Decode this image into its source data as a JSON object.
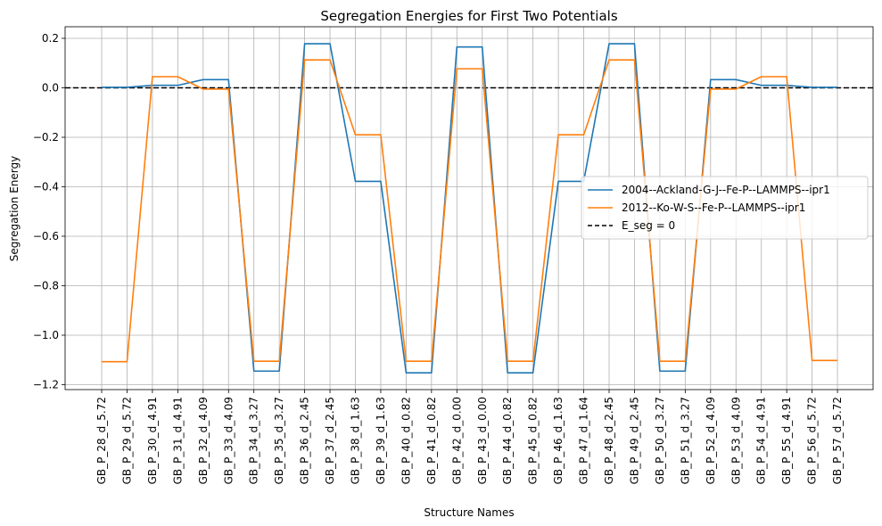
{
  "chart_data": {
    "type": "line",
    "title": "Segregation Energies for First Two Potentials",
    "xlabel": "Structure Names",
    "ylabel": "Segregation Energy",
    "ylim": [
      -1.22,
      0.23
    ],
    "yticks": [
      0.2,
      0.0,
      -0.2,
      -0.4,
      -0.6,
      -0.8,
      -1.0,
      -1.2
    ],
    "ytick_labels": [
      "0.2",
      "0.0",
      "−0.2",
      "−0.4",
      "−0.6",
      "−0.8",
      "−1.0",
      "−1.2"
    ],
    "grid": true,
    "legend_position": "center-right",
    "categories": [
      "GB_P_28_d_5.72",
      "GB_P_29_d_5.72",
      "GB_P_30_d_4.91",
      "GB_P_31_d_4.91",
      "GB_P_32_d_4.09",
      "GB_P_33_d_4.09",
      "GB_P_34_d_3.27",
      "GB_P_35_d_3.27",
      "GB_P_36_d_2.45",
      "GB_P_37_d_2.45",
      "GB_P_38_d_1.63",
      "GB_P_39_d_1.63",
      "GB_P_40_d_0.82",
      "GB_P_41_d_0.82",
      "GB_P_42_d_0.00",
      "GB_P_43_d_0.00",
      "GB_P_44_d_0.82",
      "GB_P_45_d_0.82",
      "GB_P_46_d_1.63",
      "GB_P_47_d_1.64",
      "GB_P_48_d_2.45",
      "GB_P_49_d_2.45",
      "GB_P_50_d_3.27",
      "GB_P_51_d_3.27",
      "GB_P_52_d_4.09",
      "GB_P_53_d_4.09",
      "GB_P_54_d_4.91",
      "GB_P_55_d_4.91",
      "GB_P_56_d_5.72",
      "GB_P_57_d_5.72"
    ],
    "series": [
      {
        "name": "2004--Ackland-G-J--Fe-P--LAMMPS--ipr1",
        "color": "#1f77b4",
        "values": [
          0.002,
          0.002,
          0.01,
          0.01,
          0.033,
          0.033,
          -1.145,
          -1.145,
          0.178,
          0.178,
          -0.378,
          -0.378,
          -1.152,
          -1.152,
          0.165,
          0.165,
          -1.152,
          -1.152,
          -0.378,
          -0.378,
          0.178,
          0.178,
          -1.145,
          -1.145,
          0.033,
          0.033,
          0.01,
          0.01,
          0.002,
          0.002
        ]
      },
      {
        "name": "2012--Ko-W-S--Fe-P--LAMMPS--ipr1",
        "color": "#ff7f0e",
        "values": [
          -1.107,
          -1.107,
          0.045,
          0.045,
          -0.005,
          -0.005,
          -1.105,
          -1.105,
          0.113,
          0.113,
          -0.19,
          -0.19,
          -1.105,
          -1.105,
          0.077,
          0.077,
          -1.105,
          -1.105,
          -0.19,
          -0.19,
          0.113,
          0.113,
          -1.105,
          -1.105,
          -0.005,
          -0.005,
          0.045,
          0.045,
          -1.102,
          -1.102
        ]
      }
    ],
    "reference_line": {
      "name": "E_seg = 0",
      "value": 0.0,
      "color": "#000000",
      "style": "dashed"
    }
  }
}
